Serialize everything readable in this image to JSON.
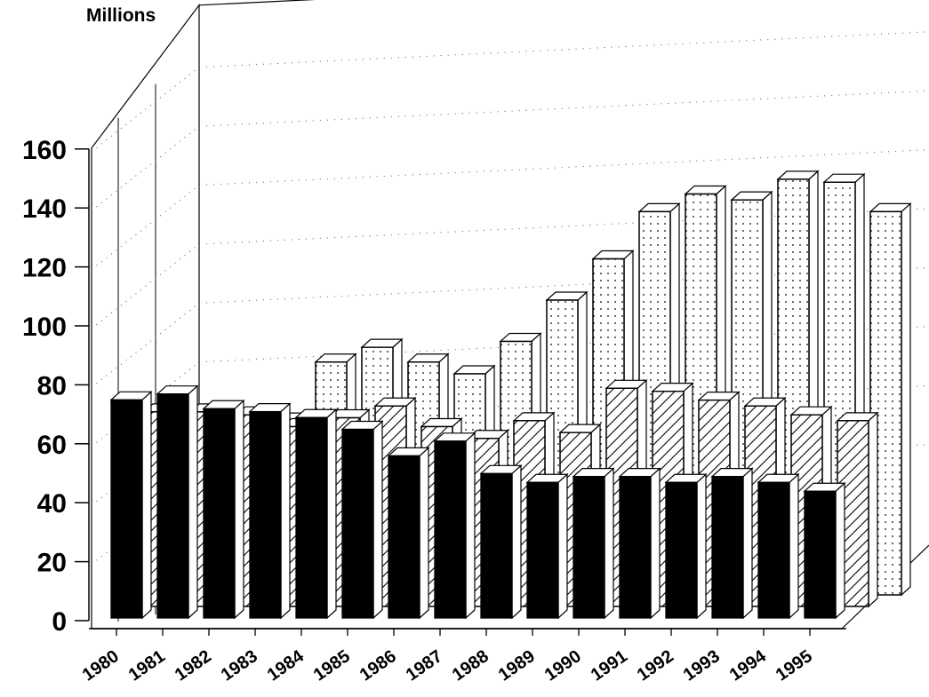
{
  "chart_data": {
    "type": "bar",
    "title": "",
    "unit_label": "Millions",
    "xlabel": "",
    "ylabel": "",
    "ylim": [
      0,
      160
    ],
    "yticks": [
      0,
      20,
      40,
      60,
      80,
      100,
      120,
      140,
      160
    ],
    "categories": [
      "1980",
      "1981",
      "1982",
      "1983",
      "1984",
      "1985",
      "1986",
      "1987",
      "1988",
      "1989",
      "1990",
      "1991",
      "1992",
      "1993",
      "1994",
      "1995"
    ],
    "series": [
      {
        "pattern": "solid-black",
        "values": [
          74,
          76,
          71,
          70,
          68,
          64,
          55,
          60,
          49,
          46,
          48,
          48,
          46,
          48,
          46,
          43
        ]
      },
      {
        "pattern": "diagonal-hatch",
        "values": [
          66,
          66,
          65,
          61,
          64,
          68,
          61,
          57,
          63,
          59,
          74,
          73,
          70,
          68,
          65,
          63
        ]
      },
      {
        "pattern": "dotted",
        "values": [
          55,
          50,
          59,
          79,
          84,
          79,
          75,
          86,
          100,
          114,
          130,
          136,
          134,
          141,
          140,
          130
        ]
      }
    ],
    "grid": true,
    "legend": "none",
    "colors": {
      "solid": "#000000",
      "face": "#ffffff",
      "line": "#000000",
      "grid": "#555555"
    }
  }
}
